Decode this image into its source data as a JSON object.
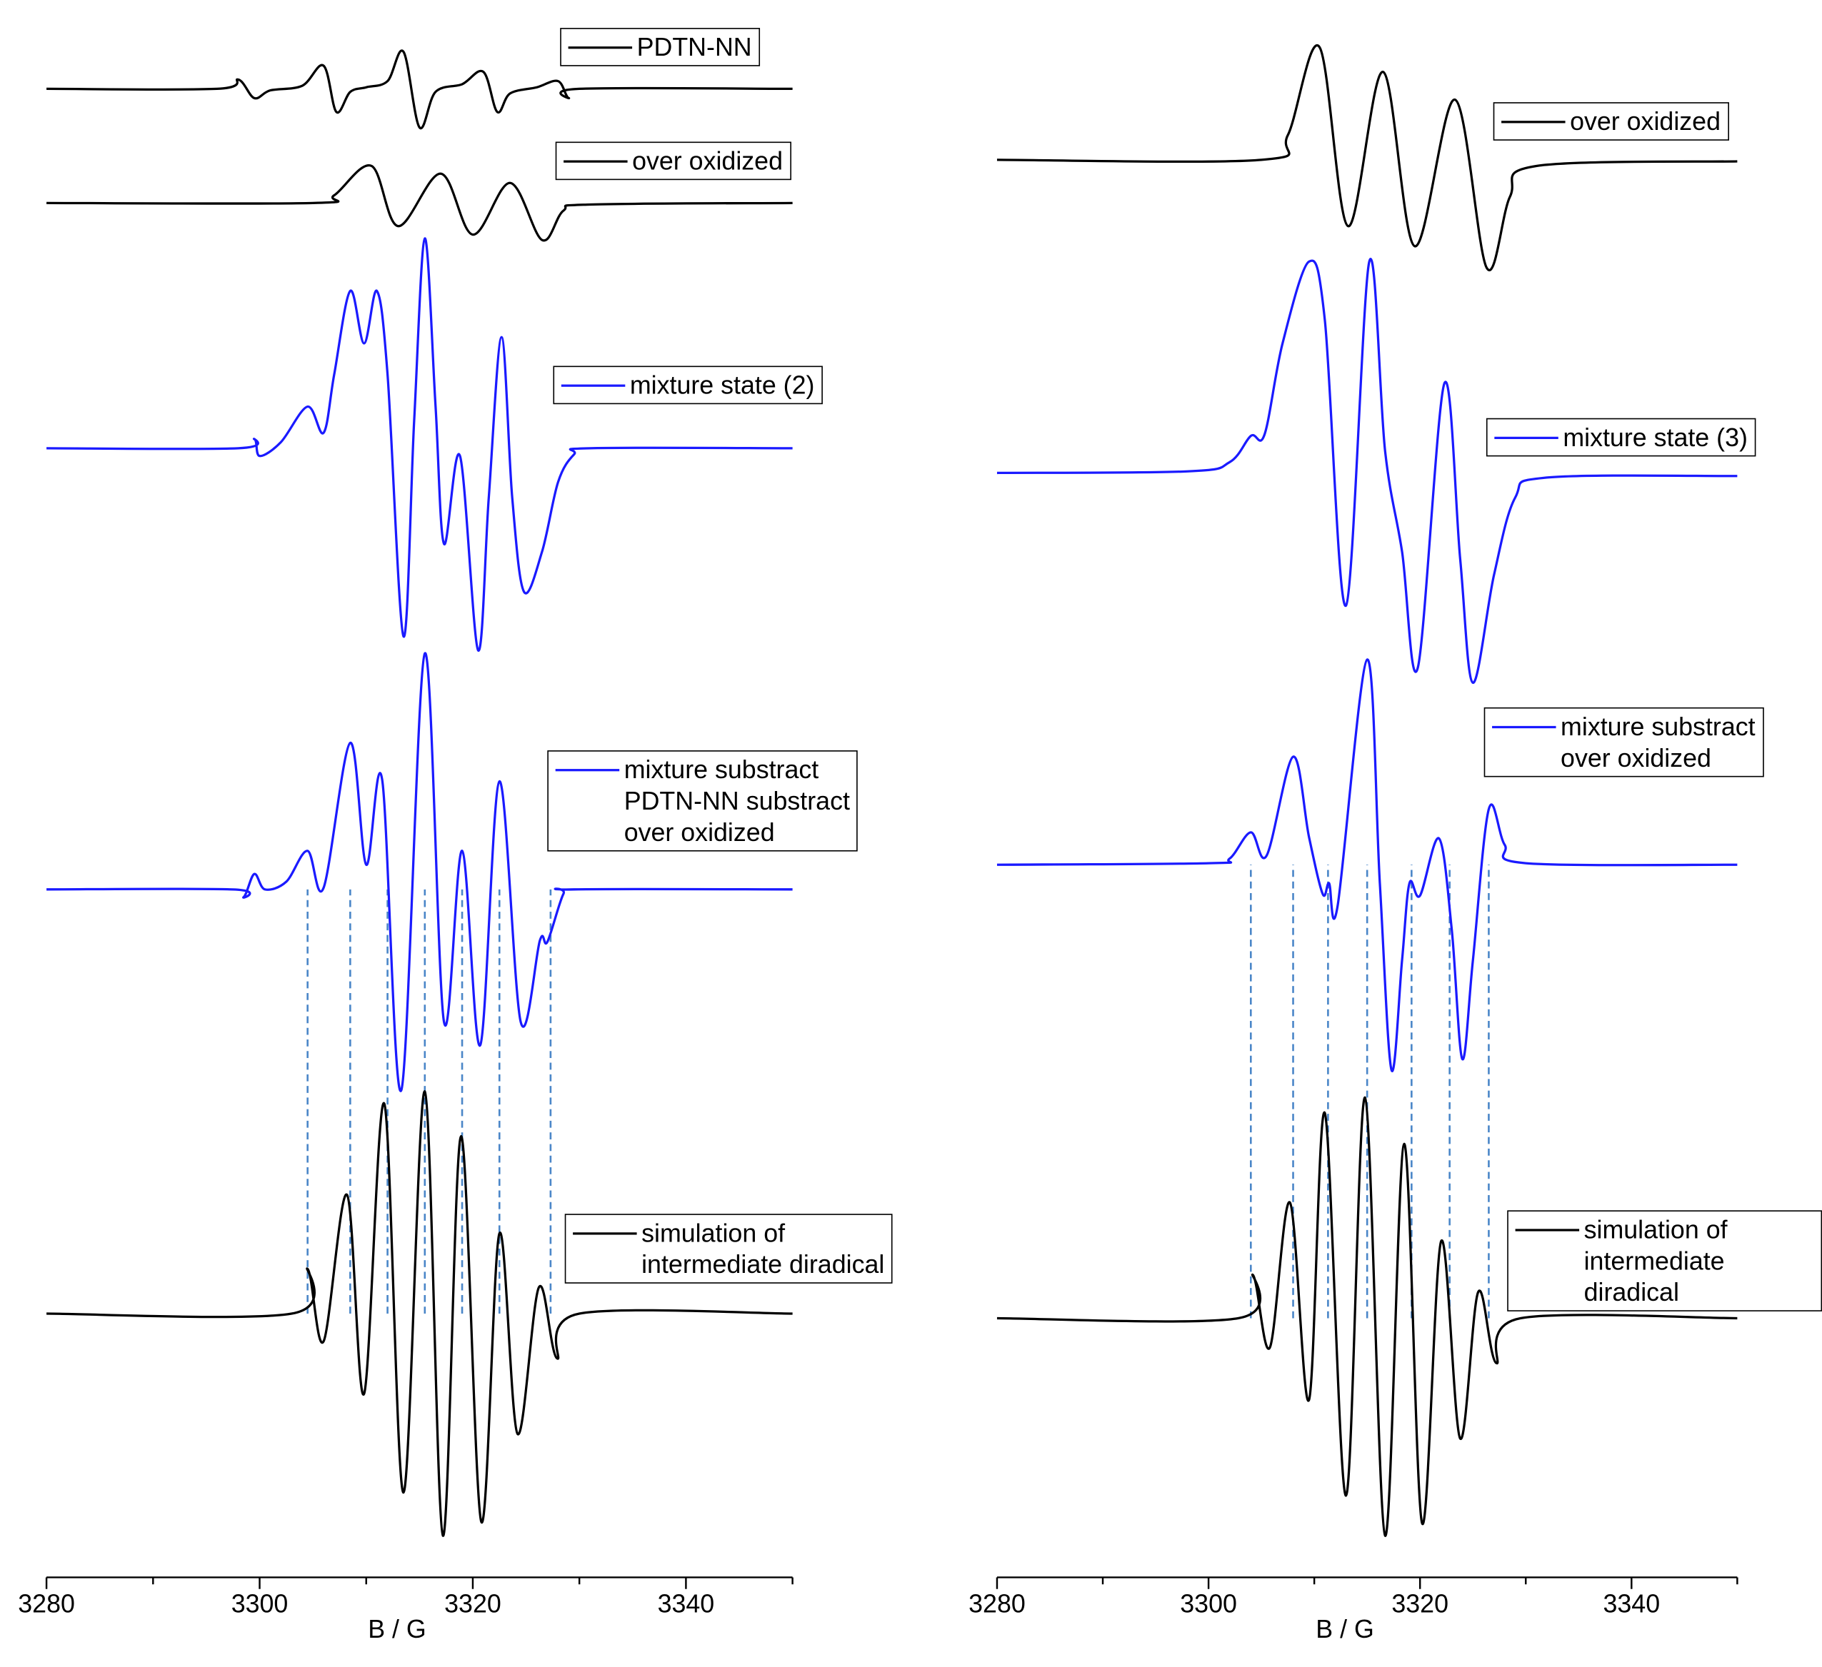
{
  "chart_data": [
    {
      "type": "line",
      "xlabel": "B / G",
      "xlim": [
        3280,
        3350
      ],
      "xticks": [
        3280,
        3300,
        3320,
        3340
      ],
      "minor_xticks": [
        3290,
        3310,
        3330,
        3350
      ],
      "ylim": [
        0,
        100
      ],
      "guides": {
        "color": "#4a86c8",
        "x": [
          3304.5,
          3308.5,
          3312,
          3315.5,
          3319,
          3322.5,
          3327.3
        ],
        "ylim": [
          17.1,
          44.6
        ]
      },
      "series": [
        {
          "name": "PDTN-NN",
          "color": "#000000",
          "x": [
            3280,
            3296,
            3298,
            3299.5,
            3301,
            3304,
            3306,
            3307.2,
            3308.5,
            3310,
            3312,
            3313.5,
            3315,
            3316.5,
            3319,
            3321,
            3322.3,
            3323.5,
            3326,
            3328,
            3329,
            3330,
            3350
          ],
          "values": [
            96.5,
            96.5,
            97.1,
            95.9,
            96.4,
            96.7,
            98.0,
            95.0,
            96.3,
            96.6,
            97.0,
            98.9,
            94.0,
            96.3,
            96.8,
            97.6,
            95.0,
            96.2,
            96.6,
            97.0,
            95.9,
            96.5,
            96.5
          ]
        },
        {
          "name": "over oxidized",
          "color": "#000000",
          "x": [
            3280,
            3305,
            3307,
            3310.5,
            3313,
            3317,
            3320,
            3323.5,
            3326.5,
            3328.5,
            3331,
            3350
          ],
          "values": [
            89.1,
            89.1,
            89.6,
            91.5,
            87.6,
            91.0,
            87.05,
            90.4,
            86.7,
            88.6,
            89.0,
            89.1
          ]
        },
        {
          "name": "mixture state (2)",
          "color": "#1a1aff",
          "x": [
            3280,
            3298,
            3299.5,
            3300,
            3302,
            3304.5,
            3306,
            3307,
            3308.5,
            3309.8,
            3311,
            3312,
            3313.5,
            3314.5,
            3315.5,
            3316.5,
            3317.3,
            3318.8,
            3320.5,
            3321.5,
            3322.7,
            3323.7,
            3324.8,
            3326.5,
            3328,
            3329.5,
            3331,
            3350
          ],
          "values": [
            73.2,
            73.2,
            73.8,
            72.7,
            73.6,
            75.9,
            74.2,
            78,
            83.4,
            80.0,
            83.4,
            78,
            61.0,
            75,
            86.8,
            76,
            67.0,
            72.7,
            60.1,
            70,
            80.4,
            70,
            63.9,
            66.5,
            71.0,
            72.8,
            73.2,
            73.2
          ]
        },
        {
          "name": "mixture substract\nPDTN-NN substract\nover oxidized",
          "color": "#1a1aff",
          "x": [
            3280,
            3297.5,
            3298.5,
            3299.5,
            3300.5,
            3302.5,
            3304.5,
            3306,
            3308.5,
            3310,
            3311.5,
            3313.3,
            3315.5,
            3317.3,
            3319,
            3320.7,
            3322.5,
            3324.5,
            3326.3,
            3327,
            3328.5,
            3329.5,
            3350
          ],
          "values": [
            44.6,
            44.6,
            44.1,
            45.6,
            44.6,
            45.1,
            47.1,
            44.7,
            54.1,
            46.2,
            51.7,
            31.6,
            59.9,
            36.0,
            47.1,
            34.5,
            51.6,
            36.0,
            41.3,
            41.2,
            44.3,
            44.6,
            44.6
          ]
        },
        {
          "name": "simulation of\nintermediate diradical",
          "color": "#000000",
          "x": [
            3280,
            3303,
            3304.5,
            3306,
            3308.2,
            3309.8,
            3311.7,
            3313.5,
            3315.5,
            3317.2,
            3318.9,
            3320.8,
            3322.5,
            3324.2,
            3326.2,
            3327.9,
            3330,
            3350
          ],
          "values": [
            17.1,
            17.1,
            20.0,
            15.3,
            24.8,
            11.9,
            30.7,
            5.5,
            31.5,
            2.7,
            28.6,
            3.6,
            22.3,
            9.3,
            18.8,
            14.2,
            17.1,
            17.1
          ]
        }
      ]
    },
    {
      "type": "line",
      "xlabel": "B / G",
      "xlim": [
        3280,
        3350
      ],
      "xticks": [
        3280,
        3300,
        3320,
        3340
      ],
      "minor_xticks": [
        3290,
        3310,
        3330,
        3350
      ],
      "ylim": [
        0,
        100
      ],
      "guides": {
        "color": "#4a86c8",
        "x": [
          3304,
          3308,
          3311.3,
          3315,
          3319.2,
          3322.8,
          3326.5
        ],
        "ylim": [
          16.8,
          46.2
        ]
      },
      "series": [
        {
          "name": "over oxidized",
          "color": "#000000",
          "x": [
            3280,
            3305,
            3307.5,
            3310.5,
            3313.2,
            3316.5,
            3319.5,
            3323.3,
            3326.3,
            3328.5,
            3331,
            3350
          ],
          "values": [
            91.9,
            91.9,
            93.5,
            99.2,
            87.6,
            97.6,
            86.3,
            95.8,
            84.9,
            89.5,
            91.5,
            91.8
          ]
        },
        {
          "name": "mixture state (3)",
          "color": "#1a1aff",
          "x": [
            3280,
            3298,
            3302,
            3304,
            3305.3,
            3307,
            3309.5,
            3311,
            3313,
            3315.2,
            3316.7,
            3318.3,
            3319.8,
            3322.3,
            3323.8,
            3325,
            3327,
            3329,
            3332,
            3350
          ],
          "values": [
            71.6,
            71.7,
            72.3,
            74.0,
            74.1,
            80,
            85.3,
            81.5,
            63.0,
            85.3,
            73,
            66.5,
            59.0,
            77.4,
            66,
            58.0,
            65,
            70,
            71.3,
            71.4
          ]
        },
        {
          "name": "mixture substract\nover oxidized",
          "color": "#1a1aff",
          "x": [
            3280,
            3300,
            3302,
            3304,
            3305.5,
            3308,
            3309.5,
            3310.8,
            3311.4,
            3312.2,
            3315,
            3316.2,
            3317.3,
            3318.3,
            3319,
            3320,
            3321.8,
            3323,
            3324,
            3325,
            3326.5,
            3328,
            3330,
            3350
          ],
          "values": [
            46.2,
            46.3,
            46.6,
            48.3,
            46.8,
            53.2,
            48,
            44.3,
            45.0,
            43.5,
            59.5,
            45,
            32.9,
            40,
            45.0,
            44.2,
            47.9,
            42,
            33.6,
            40,
            49.8,
            47.5,
            46.3,
            46.2
          ]
        },
        {
          "name": "simulation of\nintermediate diradical",
          "color": "#000000",
          "x": [
            3280,
            3302.8,
            3304.2,
            3305.8,
            3307.7,
            3309.5,
            3311,
            3313,
            3314.8,
            3316.7,
            3318.5,
            3320.2,
            3322,
            3323.8,
            3325.5,
            3327.2,
            3329.5,
            3350
          ],
          "values": [
            16.8,
            16.8,
            19.6,
            14.9,
            24.3,
            11.5,
            30.1,
            5.3,
            31.1,
            2.7,
            28.1,
            3.5,
            21.8,
            9.0,
            18.5,
            13.9,
            16.8,
            16.8
          ]
        }
      ]
    }
  ]
}
